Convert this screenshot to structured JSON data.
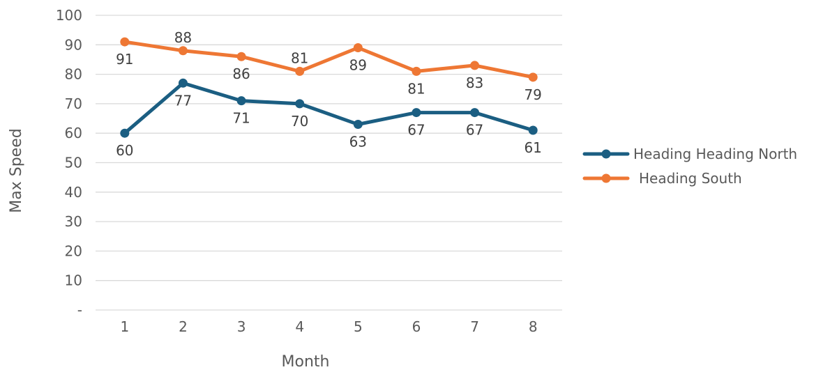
{
  "chart_data": {
    "type": "line",
    "categories": [
      "1",
      "2",
      "3",
      "4",
      "5",
      "6",
      "7",
      "8"
    ],
    "y_tick_labels": [
      "-",
      "10",
      "20",
      "30",
      "40",
      "50",
      "60",
      "70",
      "80",
      "90",
      "100"
    ],
    "ylim": [
      0,
      100
    ],
    "xlabel": "Month",
    "ylabel": "Max Speed",
    "grid": true,
    "legend_position": "right",
    "series": [
      {
        "name": "Heading Heading North",
        "color": "#1b5e82",
        "values": [
          60,
          77,
          71,
          70,
          63,
          67,
          67,
          61
        ],
        "label_position": "below"
      },
      {
        "name": "Heading South",
        "color": "#ee7734",
        "values": [
          91,
          88,
          86,
          81,
          89,
          81,
          83,
          79
        ],
        "label_position": "mixed"
      }
    ]
  }
}
